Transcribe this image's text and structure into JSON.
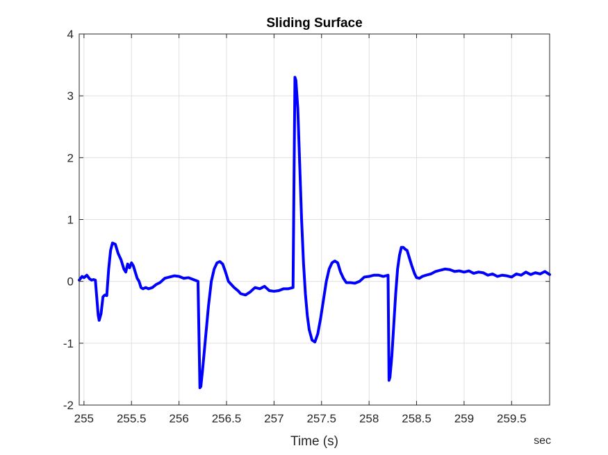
{
  "chart_data": {
    "type": "line",
    "title": "Sliding Surface",
    "xlabel": "Time (s)",
    "ylabel": "",
    "x_unit_label": "sec",
    "xlim": [
      254.95,
      259.9
    ],
    "ylim": [
      -2,
      4
    ],
    "xticks": [
      255,
      255.5,
      256,
      256.5,
      257,
      257.5,
      258,
      258.5,
      259,
      259.5
    ],
    "xtick_labels": [
      "255",
      "255.5",
      "256",
      "256.5",
      "257",
      "257.5",
      "258",
      "258.5",
      "259",
      "259.5"
    ],
    "yticks": [
      -2,
      -1,
      0,
      1,
      2,
      3,
      4
    ],
    "ytick_labels": [
      "-2",
      "-1",
      "0",
      "1",
      "2",
      "3",
      "4"
    ],
    "grid": true,
    "series": [
      {
        "color": "#0000ff",
        "x": [
          254.95,
          254.98,
          255.0,
          255.03,
          255.06,
          255.08,
          255.1,
          255.12,
          255.15,
          255.16,
          255.18,
          255.2,
          255.22,
          255.24,
          255.26,
          255.28,
          255.3,
          255.33,
          255.36,
          255.39,
          255.42,
          255.44,
          255.46,
          255.48,
          255.5,
          255.52,
          255.54,
          255.56,
          255.58,
          255.6,
          255.62,
          255.65,
          255.68,
          255.72,
          255.76,
          255.8,
          255.85,
          255.9,
          255.95,
          256.0,
          256.05,
          256.1,
          256.15,
          256.2,
          256.22,
          256.23,
          256.25,
          256.28,
          256.31,
          256.34,
          256.37,
          256.4,
          256.43,
          256.46,
          256.49,
          256.52,
          256.55,
          256.58,
          256.62,
          256.65,
          256.7,
          256.75,
          256.8,
          256.85,
          256.9,
          256.95,
          257.0,
          257.05,
          257.1,
          257.15,
          257.2,
          257.22,
          257.23,
          257.25,
          257.27,
          257.29,
          257.31,
          257.33,
          257.35,
          257.37,
          257.4,
          257.43,
          257.46,
          257.49,
          257.52,
          257.55,
          257.58,
          257.61,
          257.64,
          257.67,
          257.7,
          257.73,
          257.76,
          257.8,
          257.85,
          257.9,
          257.95,
          258.0,
          258.05,
          258.1,
          258.15,
          258.2,
          258.21,
          258.22,
          258.24,
          258.26,
          258.28,
          258.3,
          258.32,
          258.34,
          258.36,
          258.38,
          258.4,
          258.42,
          258.45,
          258.48,
          258.5,
          258.53,
          258.56,
          258.6,
          258.65,
          258.7,
          258.75,
          258.8,
          258.85,
          258.9,
          258.95,
          259.0,
          259.05,
          259.1,
          259.15,
          259.2,
          259.25,
          259.3,
          259.35,
          259.4,
          259.45,
          259.5,
          259.55,
          259.6,
          259.65,
          259.7,
          259.75,
          259.8,
          259.85,
          259.9
        ],
        "y": [
          0.02,
          0.08,
          0.06,
          0.1,
          0.04,
          0.02,
          0.03,
          0.02,
          -0.55,
          -0.63,
          -0.52,
          -0.25,
          -0.22,
          -0.23,
          0.2,
          0.5,
          0.62,
          0.6,
          0.45,
          0.35,
          0.2,
          0.15,
          0.28,
          0.22,
          0.3,
          0.25,
          0.15,
          0.05,
          0.0,
          -0.1,
          -0.12,
          -0.1,
          -0.12,
          -0.1,
          -0.05,
          -0.02,
          0.05,
          0.07,
          0.09,
          0.08,
          0.05,
          0.06,
          0.03,
          0.0,
          -1.72,
          -1.7,
          -1.4,
          -0.9,
          -0.4,
          0.0,
          0.2,
          0.3,
          0.32,
          0.28,
          0.15,
          0.0,
          -0.05,
          -0.1,
          -0.15,
          -0.2,
          -0.22,
          -0.17,
          -0.1,
          -0.12,
          -0.08,
          -0.15,
          -0.16,
          -0.15,
          -0.12,
          -0.12,
          -0.1,
          3.3,
          3.25,
          2.8,
          1.9,
          1.0,
          0.3,
          -0.2,
          -0.55,
          -0.78,
          -0.95,
          -0.98,
          -0.85,
          -0.6,
          -0.3,
          0.0,
          0.2,
          0.3,
          0.33,
          0.3,
          0.15,
          0.05,
          -0.02,
          -0.02,
          -0.03,
          0.0,
          0.07,
          0.08,
          0.1,
          0.1,
          0.08,
          0.1,
          -1.6,
          -1.55,
          -1.2,
          -0.7,
          -0.2,
          0.2,
          0.42,
          0.55,
          0.55,
          0.52,
          0.5,
          0.4,
          0.25,
          0.12,
          0.06,
          0.05,
          0.08,
          0.1,
          0.12,
          0.16,
          0.18,
          0.2,
          0.19,
          0.16,
          0.17,
          0.15,
          0.17,
          0.13,
          0.15,
          0.14,
          0.1,
          0.12,
          0.08,
          0.1,
          0.09,
          0.07,
          0.12,
          0.1,
          0.15,
          0.11,
          0.14,
          0.12,
          0.16,
          0.11
        ]
      }
    ]
  }
}
